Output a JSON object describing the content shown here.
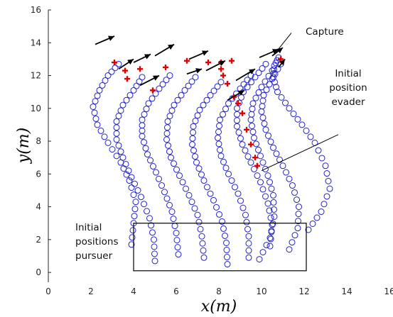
{
  "chart_data": {
    "type": "scatter",
    "title": "",
    "xlabel": "x(m)",
    "ylabel": "y(m)",
    "xlim": [
      0,
      16
    ],
    "ylim": [
      -0.6,
      16
    ],
    "grid": false,
    "x_ticks": [
      "0",
      "2",
      "4",
      "6",
      "8",
      "10",
      "12",
      "14",
      "16"
    ],
    "y_ticks": [
      "0",
      "2",
      "4",
      "6",
      "8",
      "10",
      "12",
      "14",
      "16"
    ],
    "colors": {
      "pursuer": "#2323c8",
      "evader": "#e00000",
      "arrow": "#000000",
      "box": "#000000"
    },
    "series": [
      {
        "marker": "circle",
        "trajectories": [
          {
            "x": [
              3.9,
              4.0,
              4.1,
              3.8,
              3.4,
              2.8,
              2.3,
              2.1,
              2.4,
              2.8,
              3.3
            ],
            "y": [
              1.7,
              3.0,
              4.3,
              5.6,
              6.7,
              7.9,
              9.0,
              10.1,
              11.1,
              12.0,
              12.7
            ]
          },
          {
            "x": [
              5.0,
              4.95,
              4.75,
              4.35,
              3.9,
              3.5,
              3.2,
              3.2,
              3.5,
              4.0,
              4.4
            ],
            "y": [
              0.7,
              2.0,
              3.3,
              4.6,
              5.8,
              7.0,
              8.1,
              9.2,
              10.2,
              11.1,
              11.9
            ]
          },
          {
            "x": [
              6.1,
              6.0,
              5.8,
              5.45,
              5.05,
              4.65,
              4.4,
              4.4,
              4.7,
              5.2,
              5.7
            ],
            "y": [
              1.1,
              2.4,
              3.7,
              4.9,
              6.1,
              7.2,
              8.3,
              9.3,
              10.3,
              11.2,
              12.0
            ]
          },
          {
            "x": [
              7.3,
              7.2,
              7.0,
              6.6,
              6.15,
              5.75,
              5.55,
              5.6,
              5.9,
              6.4,
              6.9
            ],
            "y": [
              0.9,
              2.2,
              3.5,
              4.7,
              5.9,
              7.0,
              8.1,
              9.2,
              10.2,
              11.1,
              11.9
            ]
          },
          {
            "x": [
              8.4,
              8.35,
              8.15,
              7.75,
              7.3,
              6.95,
              6.75,
              6.8,
              7.1,
              7.6,
              8.1
            ],
            "y": [
              0.5,
              1.8,
              3.1,
              4.4,
              5.6,
              6.7,
              7.8,
              8.9,
              9.9,
              10.8,
              11.6
            ]
          },
          {
            "x": [
              9.4,
              9.4,
              9.25,
              8.9,
              8.45,
              8.1,
              7.95,
              8.05,
              8.45,
              9.0,
              9.5
            ],
            "y": [
              0.9,
              2.2,
              3.5,
              4.8,
              6.0,
              7.1,
              8.2,
              9.3,
              10.3,
              11.2,
              12.0
            ]
          },
          {
            "x": [
              10.4,
              10.5,
              10.3,
              9.95,
              9.5,
              9.1,
              8.85,
              8.85,
              9.15,
              9.7,
              10.2
            ],
            "y": [
              1.6,
              2.9,
              4.2,
              5.5,
              6.7,
              7.8,
              8.9,
              10.0,
              11.0,
              11.9,
              12.7
            ]
          },
          {
            "x": [
              11.3,
              11.7,
              11.75,
              11.45,
              11.0,
              10.55,
              10.2,
              10.0,
              10.1,
              10.5,
              10.9
            ],
            "y": [
              1.4,
              2.7,
              4.0,
              5.3,
              6.5,
              7.6,
              8.7,
              9.8,
              10.8,
              11.8,
              12.7
            ]
          },
          {
            "x": [
              9.9,
              10.4,
              10.6,
              10.55,
              10.3,
              9.95,
              9.65,
              9.5,
              9.6,
              10.0,
              10.5
            ],
            "y": [
              0.8,
              2.1,
              3.4,
              4.7,
              5.9,
              7.1,
              8.2,
              9.3,
              10.3,
              11.3,
              12.3
            ]
          },
          {
            "x": [
              12.2,
              12.8,
              13.2,
              13.0,
              12.5,
              11.9,
              11.3,
              10.75,
              10.55,
              10.6,
              10.8
            ],
            "y": [
              2.6,
              3.7,
              5.1,
              6.5,
              7.9,
              9.0,
              10.0,
              11.0,
              11.9,
              12.6,
              13.1
            ]
          }
        ]
      },
      {
        "marker": "plus",
        "points": [
          {
            "x": 9.8,
            "y": 6.5
          },
          {
            "x": 9.7,
            "y": 7.0
          },
          {
            "x": 9.5,
            "y": 7.8
          },
          {
            "x": 9.3,
            "y": 8.7
          },
          {
            "x": 9.1,
            "y": 9.7
          },
          {
            "x": 8.9,
            "y": 10.3
          },
          {
            "x": 8.7,
            "y": 10.7
          },
          {
            "x": 8.4,
            "y": 11.5
          },
          {
            "x": 8.2,
            "y": 12.0
          },
          {
            "x": 8.1,
            "y": 12.4
          },
          {
            "x": 8.6,
            "y": 12.9
          },
          {
            "x": 8.1,
            "y": 12.8
          },
          {
            "x": 7.5,
            "y": 12.8
          },
          {
            "x": 6.5,
            "y": 12.9
          },
          {
            "x": 5.5,
            "y": 12.5
          },
          {
            "x": 4.9,
            "y": 11.1
          },
          {
            "x": 3.7,
            "y": 11.8
          },
          {
            "x": 3.6,
            "y": 12.3
          },
          {
            "x": 3.1,
            "y": 12.8
          },
          {
            "x": 4.3,
            "y": 12.4
          },
          {
            "x": 10.9,
            "y": 13.0
          }
        ]
      }
    ],
    "arrows": [
      {
        "x1": 4.3,
        "y1": 11.4,
        "x2": 5.2,
        "y2": 12.0
      },
      {
        "x1": 6.5,
        "y1": 12.1,
        "x2": 7.2,
        "y2": 12.4
      },
      {
        "x1": 7.4,
        "y1": 12.3,
        "x2": 8.3,
        "y2": 12.9
      },
      {
        "x1": 8.8,
        "y1": 11.7,
        "x2": 9.7,
        "y2": 12.4
      },
      {
        "x1": 3.3,
        "y1": 12.4,
        "x2": 4.0,
        "y2": 13.0
      },
      {
        "x1": 4.0,
        "y1": 12.8,
        "x2": 4.8,
        "y2": 13.3
      },
      {
        "x1": 5.0,
        "y1": 13.2,
        "x2": 5.9,
        "y2": 13.9
      },
      {
        "x1": 6.6,
        "y1": 13.0,
        "x2": 7.5,
        "y2": 13.5
      },
      {
        "x1": 8.4,
        "y1": 10.5,
        "x2": 9.2,
        "y2": 11.1
      },
      {
        "x1": 9.9,
        "y1": 13.1,
        "x2": 10.8,
        "y2": 13.6
      },
      {
        "x1": 10.5,
        "y1": 13.2,
        "x2": 11.0,
        "y2": 13.7
      },
      {
        "x1": 10.8,
        "y1": 12.5,
        "x2": 11.1,
        "y2": 13.0
      },
      {
        "x1": 2.2,
        "y1": 13.9,
        "x2": 3.1,
        "y2": 14.4
      }
    ],
    "box": {
      "x": [
        4.0,
        12.1
      ],
      "y": [
        0.1,
        3.0
      ]
    },
    "annotations": {
      "capture": {
        "lines": [
          "Capture"
        ],
        "pointer": {
          "x1": 11.4,
          "y1": 14.6,
          "x2": 10.6,
          "y2": 13.3
        }
      },
      "evader": {
        "lines": [
          "Initial",
          "position",
          "evader"
        ],
        "pointer": {
          "x1": 13.6,
          "y1": 8.4,
          "x2": 10.0,
          "y2": 6.2
        }
      },
      "pursuer": {
        "lines": [
          "Initial",
          "positions",
          "pursuer"
        ]
      }
    }
  }
}
